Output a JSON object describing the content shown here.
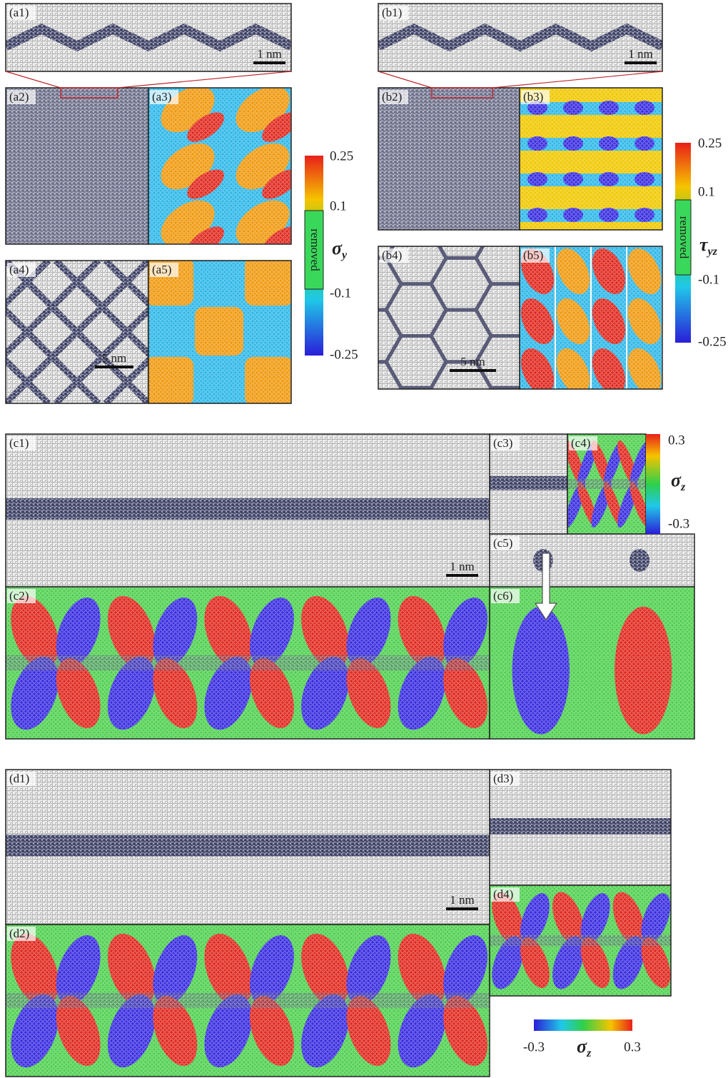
{
  "panels": [
    "(a1)",
    "(a2)",
    "(a3)",
    "(a4)",
    "(a5)",
    "(b1)",
    "(b2)",
    "(b3)",
    "(b4)",
    "(b5)",
    "(c1)",
    "(c2)",
    "(c3)",
    "(c4)",
    "(c5)",
    "(c6)",
    "(d1)",
    "(d2)",
    "(d3)",
    "(d4)"
  ],
  "scale_bars": [
    "1 nm",
    "5 nm",
    "1 nm",
    "5 nm",
    "1 nm",
    "1 nm"
  ],
  "colorbars": [
    {
      "ticks": [
        "0.25",
        "0.1",
        "-0.1",
        "-0.25"
      ],
      "symbol": "σ",
      "subscript": "y",
      "removed": "removed"
    },
    {
      "ticks": [
        "0.25",
        "0.1",
        "-0.1",
        "-0.25"
      ],
      "symbol": "τ",
      "subscript": "yz",
      "removed": "removed"
    },
    {
      "ticks": [
        "0.3",
        "-0.3"
      ],
      "symbol": "σ",
      "subscript": "z"
    },
    {
      "ticks": [
        "-0.3",
        "0.3"
      ],
      "symbol": "σ",
      "subscript": "z"
    }
  ]
}
